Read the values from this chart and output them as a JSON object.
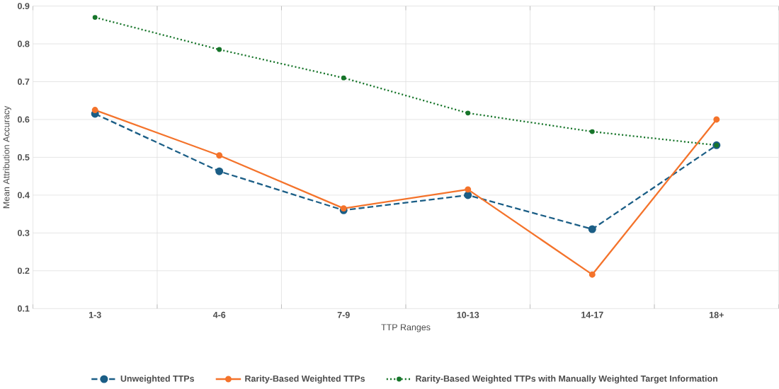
{
  "chart_data": {
    "type": "line",
    "xlabel": "TTP Ranges",
    "ylabel": "Mean Attribution Accuracy",
    "categories": [
      "1-3",
      "4-6",
      "7-9",
      "10-13",
      "14-17",
      "18+"
    ],
    "ylim": [
      0.1,
      0.9
    ],
    "yticks": [
      0.1,
      0.2,
      0.3,
      0.4,
      0.5,
      0.6,
      0.7,
      0.8,
      0.9
    ],
    "grid": true,
    "legend": "bottom",
    "marker": "circle",
    "series": [
      {
        "name": "Unweighted TTPs",
        "color": "#1b5e86",
        "line_style": "dashed",
        "values": [
          0.615,
          0.463,
          0.36,
          0.4,
          0.31,
          0.532
        ]
      },
      {
        "name": "Rarity-Based Weighted TTPs",
        "color": "#f4732b",
        "line_style": "solid",
        "values": [
          0.625,
          0.505,
          0.365,
          0.415,
          0.19,
          0.6
        ]
      },
      {
        "name": "Rarity-Based Weighted TTPs with Manually Weighted Target Information",
        "color": "#17752a",
        "line_style": "dotted",
        "values": [
          0.87,
          0.785,
          0.71,
          0.617,
          0.568,
          0.532
        ]
      }
    ]
  }
}
